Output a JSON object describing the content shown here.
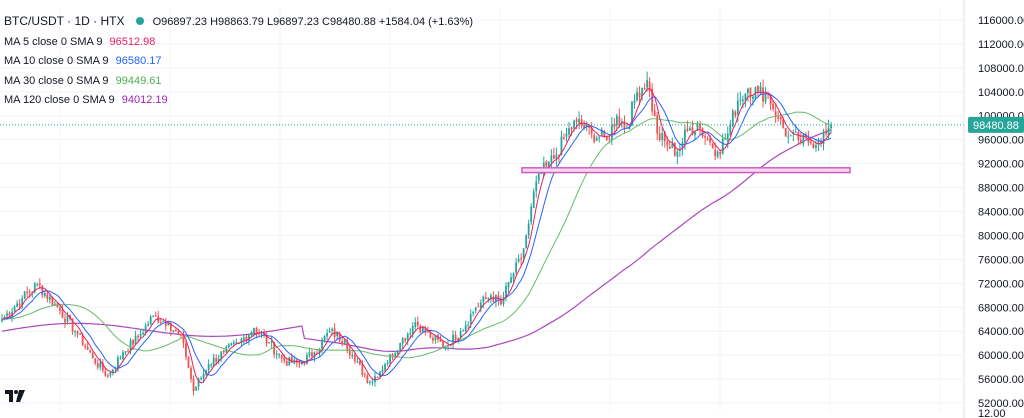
{
  "header": {
    "symbol": "BTC/USDT · 1D · HTX",
    "ohlc": "O96897.23 H98863.79 L96897.23 C98480.88 +1584.04 (+1.63%)",
    "status_color": "#26a69a"
  },
  "indicators": [
    {
      "label": "MA 5 close 0 SMA 9",
      "value": "96512.98",
      "color": "#e91e63"
    },
    {
      "label": "MA 10 close 0 SMA 9",
      "value": "96580.17",
      "color": "#2962ff"
    },
    {
      "label": "MA 30 close 0 SMA 9",
      "value": "99449.61",
      "color": "#4caf50"
    },
    {
      "label": "MA 120 close 0 SMA 9",
      "value": "94012.19",
      "color": "#9c27b0"
    }
  ],
  "colors": {
    "up": "#26a69a",
    "down": "#ef5350",
    "ma5": "#e91e63",
    "ma10": "#2962ff",
    "ma30": "#66bb6a",
    "ma120": "#ab47bc",
    "support": "#d05ec2",
    "last_price_line": "#26a69a"
  },
  "chart_data": {
    "type": "candlestick",
    "title": "BTC/USDT · 1D · HTX",
    "y_axis": {
      "ylim": [
        50500,
        118000
      ],
      "ticks": [
        52000,
        56000,
        60000,
        64000,
        68000,
        72000,
        76000,
        80000,
        84000,
        88000,
        92000,
        96000,
        100000,
        104000,
        108000,
        112000,
        116000
      ],
      "tick_labels": [
        "52000.00",
        "56000.00",
        "60000.00",
        "64000.00",
        "68000.00",
        "72000.00",
        "76000.00",
        "80000.00",
        "84000.00",
        "88000.00",
        "92000.00",
        "96000.00",
        "100000.00",
        "104000.00",
        "108000.00",
        "112000.00",
        "116000.00"
      ],
      "partial_bottom_label": "12.00"
    },
    "last_price": {
      "value": 98480.88,
      "label": "98480.88"
    },
    "support_zone": {
      "from": 90500,
      "to": 91300
    },
    "anchors": [
      [
        0,
        66000
      ],
      [
        8,
        69500
      ],
      [
        14,
        71800
      ],
      [
        22,
        68000
      ],
      [
        30,
        63500
      ],
      [
        36,
        59500
      ],
      [
        42,
        56500
      ],
      [
        48,
        60500
      ],
      [
        54,
        63000
      ],
      [
        60,
        66500
      ],
      [
        66,
        65500
      ],
      [
        72,
        62000
      ],
      [
        76,
        54000
      ],
      [
        82,
        58500
      ],
      [
        88,
        60500
      ],
      [
        94,
        62000
      ],
      [
        100,
        64500
      ],
      [
        106,
        62000
      ],
      [
        112,
        59000
      ],
      [
        118,
        58500
      ],
      [
        124,
        60500
      ],
      [
        130,
        64000
      ],
      [
        136,
        62500
      ],
      [
        140,
        59000
      ],
      [
        146,
        55500
      ],
      [
        152,
        58500
      ],
      [
        158,
        62000
      ],
      [
        164,
        65500
      ],
      [
        170,
        63000
      ],
      [
        176,
        61500
      ],
      [
        182,
        64000
      ],
      [
        188,
        68000
      ],
      [
        194,
        70000
      ],
      [
        198,
        68500
      ],
      [
        202,
        73000
      ],
      [
        206,
        76000
      ],
      [
        209,
        82000
      ],
      [
        212,
        89000
      ],
      [
        216,
        91500
      ],
      [
        220,
        93500
      ],
      [
        224,
        97000
      ],
      [
        228,
        99000
      ],
      [
        234,
        97000
      ],
      [
        240,
        96000
      ],
      [
        244,
        100000
      ],
      [
        248,
        98000
      ],
      [
        252,
        104000
      ],
      [
        256,
        106000
      ],
      [
        260,
        97000
      ],
      [
        264,
        95000
      ],
      [
        268,
        94000
      ],
      [
        272,
        97500
      ],
      [
        276,
        98500
      ],
      [
        280,
        96000
      ],
      [
        284,
        94000
      ],
      [
        288,
        97000
      ],
      [
        292,
        102500
      ],
      [
        296,
        104500
      ],
      [
        300,
        104000
      ],
      [
        304,
        103500
      ],
      [
        308,
        99500
      ],
      [
        312,
        96500
      ],
      [
        316,
        96000
      ],
      [
        320,
        95500
      ],
      [
        324,
        96000
      ],
      [
        327,
        97000
      ],
      [
        329,
        98480.88
      ]
    ],
    "series": [
      {
        "name": "MA 5",
        "period": 5
      },
      {
        "name": "MA 10",
        "period": 10
      },
      {
        "name": "MA 30",
        "period": 30
      },
      {
        "name": "MA 120",
        "period": 120
      }
    ]
  }
}
